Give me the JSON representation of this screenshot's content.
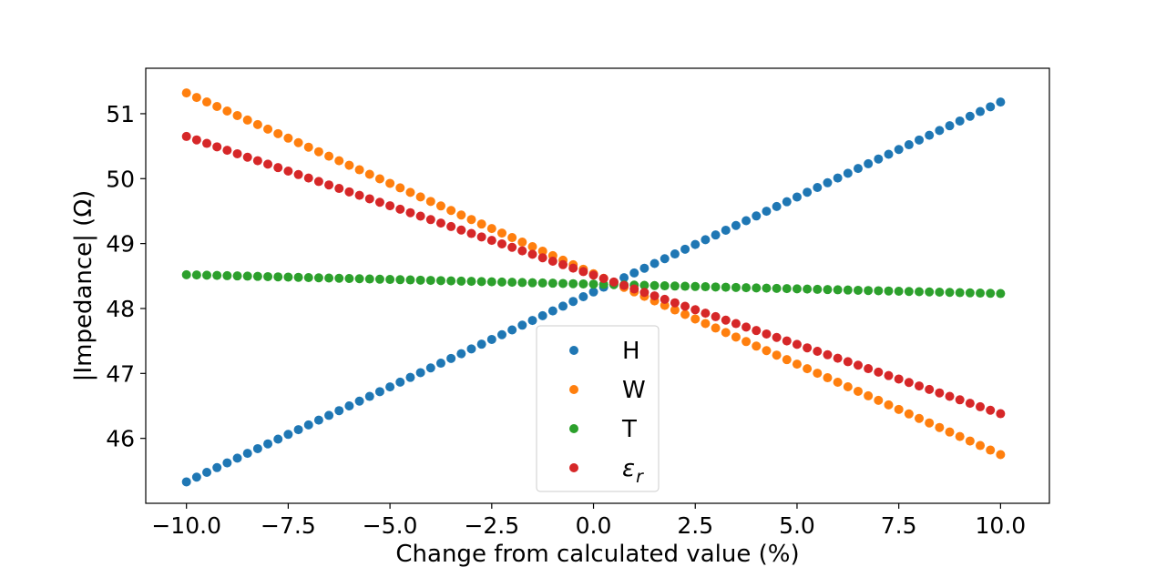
{
  "chart_data": {
    "type": "scatter",
    "title": "",
    "xlabel": "Change from calculated value (%)",
    "ylabel": "|Impedance| (Ω)",
    "xlim": [
      -11.0,
      11.2
    ],
    "ylim": [
      45.0,
      51.7
    ],
    "x_ticks": [
      -10.0,
      -7.5,
      -5.0,
      -2.5,
      0.0,
      2.5,
      5.0,
      7.5,
      10.0
    ],
    "x_tick_labels": [
      "−10.0",
      "−7.5",
      "−5.0",
      "−2.5",
      "0.0",
      "2.5",
      "5.0",
      "7.5",
      "10.0"
    ],
    "y_ticks": [
      46,
      47,
      48,
      49,
      50,
      51
    ],
    "y_tick_labels": [
      "46",
      "47",
      "48",
      "49",
      "50",
      "51"
    ],
    "grid": false,
    "legend_position": "lower-center",
    "points_per_series": 81,
    "x_range": [
      -10.0,
      10.0
    ],
    "series": [
      {
        "name": "H",
        "label_main": "H",
        "label_sub": "",
        "color": "#1f77b4",
        "y_start": 45.33,
        "y_end": 51.18
      },
      {
        "name": "W",
        "label_main": "W",
        "label_sub": "",
        "color": "#ff7f0e",
        "y_start": 51.32,
        "y_end": 45.75
      },
      {
        "name": "T",
        "label_main": "T",
        "label_sub": "",
        "color": "#2ca02c",
        "y_start": 48.52,
        "y_end": 48.23
      },
      {
        "name": "εr",
        "label_main": "ε",
        "label_sub": "r",
        "color": "#d62728",
        "y_start": 50.65,
        "y_end": 46.38
      }
    ]
  }
}
